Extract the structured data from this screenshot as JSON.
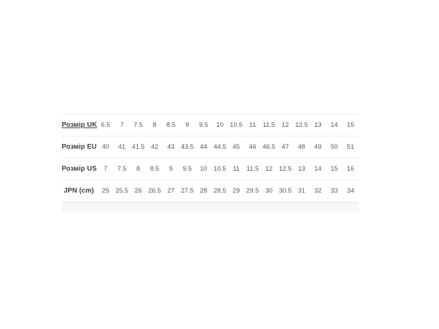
{
  "chart_data": {
    "type": "table",
    "title": "",
    "row_headers": [
      "Розмір UK",
      "Розмір EU",
      "Розмір US",
      "JPN (cm)"
    ],
    "rows": [
      [
        "6.5",
        "7",
        "7.5",
        "8",
        "8.5",
        "9",
        "9.5",
        "10",
        "10.5",
        "11",
        "11.5",
        "12",
        "12.5",
        "13",
        "14",
        "15"
      ],
      [
        "40",
        "41",
        "41.5",
        "42",
        "43",
        "43.5",
        "44",
        "44.5",
        "45",
        "46",
        "46.5",
        "47",
        "48",
        "49",
        "50",
        "51"
      ],
      [
        "7",
        "7.5",
        "8",
        "8.5",
        "9",
        "9.5",
        "10",
        "10.5",
        "11",
        "11.5",
        "12",
        "12.5",
        "13",
        "14",
        "15",
        "16"
      ],
      [
        "25",
        "25.5",
        "26",
        "26.5",
        "27",
        "27.5",
        "28",
        "28.5",
        "29",
        "29.5",
        "30",
        "30.5",
        "31",
        "32",
        "33",
        "34"
      ]
    ],
    "layout": "4 label rows x 16 value columns, horizontal dividers only, no column headers, legend none"
  },
  "table_meta": {
    "row_keys": [
      "uk",
      "eu",
      "us",
      "jpn"
    ],
    "linked_row_index": 0
  },
  "colors": {
    "background": "#ffffff",
    "label_text": "#3e3e3e",
    "value_text": "#54575d",
    "divider": "#ececec",
    "footer_band": "#f7f7f7"
  }
}
